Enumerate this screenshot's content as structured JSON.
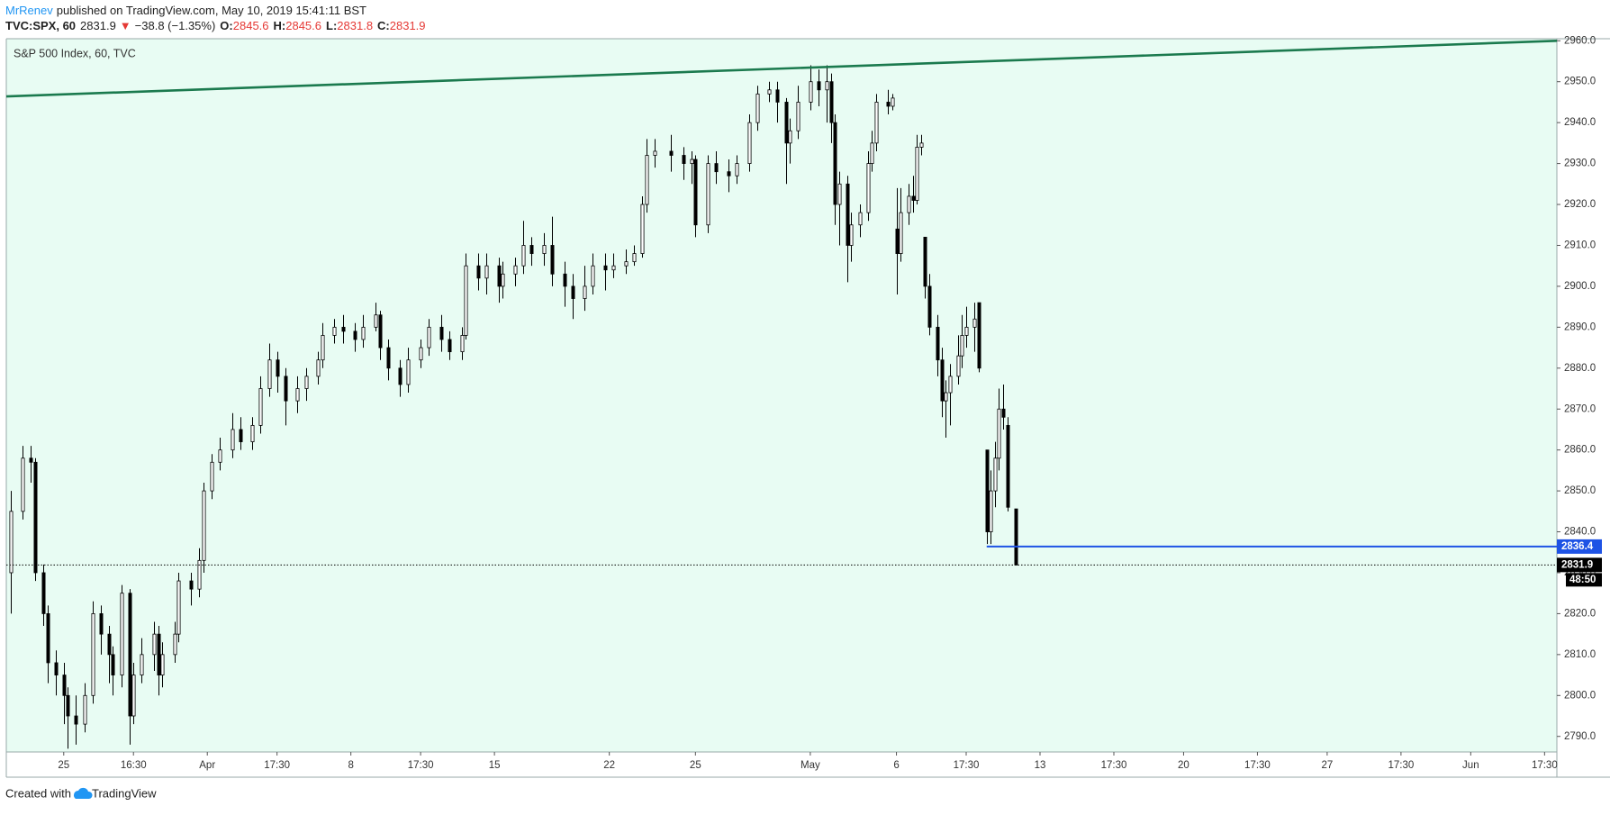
{
  "header": {
    "author": "MrRenev",
    "published": "published on TradingView.com, May 10, 2019 15:41:11 BST",
    "symbol": "TVC:SPX, 60",
    "last": "2831.9",
    "arrow": "▼",
    "change": "−38.8 (−1.35%)",
    "ohlc": [
      {
        "label": "O:",
        "value": "2845.6"
      },
      {
        "label": "H:",
        "value": "2845.6"
      },
      {
        "label": "L:",
        "value": "2831.8"
      },
      {
        "label": "C:",
        "value": "2831.9"
      }
    ]
  },
  "footer": {
    "created": "Created with",
    "brand": "TradingView"
  },
  "chart_data": {
    "type": "candlestick",
    "title": "S&P 500 Index, 60, TVC",
    "background": "#e8fcf3",
    "up_color": "#ffffff",
    "down_color": "#000000",
    "wick_color": "#000000",
    "x": [
      1,
      4,
      6,
      7,
      9,
      10,
      12,
      14,
      15,
      17,
      19,
      21,
      23,
      25,
      26,
      28,
      30,
      31,
      33,
      36,
      37,
      38,
      41,
      42,
      45,
      47,
      48,
      50,
      52,
      55,
      57,
      60,
      62,
      64,
      66,
      68,
      71,
      73,
      76,
      77,
      80,
      82,
      85,
      87,
      90,
      91,
      93,
      96,
      98,
      101,
      103,
      106,
      108,
      111,
      112,
      115,
      117,
      120,
      121,
      124,
      126,
      128,
      131,
      133,
      136,
      138,
      141,
      143,
      146,
      148,
      151,
      153,
      155,
      156,
      158,
      162,
      165,
      167,
      168,
      171,
      173,
      176,
      178,
      181,
      183,
      186,
      188,
      190,
      191,
      193,
      196,
      198,
      200,
      201,
      202,
      203,
      205,
      206,
      208,
      210,
      211,
      212,
      215,
      216,
      217,
      218,
      220,
      221,
      222,
      223,
      224,
      225,
      227,
      228,
      229,
      230,
      232,
      233,
      234,
      236,
      237,
      239,
      240,
      241,
      242,
      243,
      244,
      246
    ],
    "open": [
      2830,
      2845,
      2858,
      2857,
      2830,
      2820,
      2808,
      2805,
      2800,
      2795,
      2793,
      2800,
      2820,
      2815,
      2810,
      2805,
      2825,
      2795,
      2805,
      2810,
      2815,
      2805,
      2810,
      2815,
      2828,
      2826,
      2833,
      2850,
      2857,
      2860,
      2865,
      2862,
      2866,
      2875,
      2882,
      2878,
      2872,
      2875,
      2878,
      2882,
      2888,
      2890,
      2889,
      2887,
      2890,
      2893,
      2885,
      2880,
      2876,
      2882,
      2885,
      2890,
      2887,
      2884,
      2888,
      2905,
      2902,
      2905,
      2900,
      2903,
      2905,
      2910,
      2908,
      2910,
      2903,
      2900,
      2897,
      2900,
      2905,
      2904,
      2905,
      2906,
      2908,
      2920,
      2932,
      2933,
      2932,
      2930,
      2931,
      2915,
      2930,
      2928,
      2927,
      2930,
      2940,
      2947,
      2948,
      2945,
      2935,
      2938,
      2945,
      2950,
      2948,
      2950,
      2940,
      2920,
      2925,
      2910,
      2915,
      2918,
      2930,
      2935,
      2945,
      2944,
      2914,
      2908,
      2918,
      2922,
      2921,
      2934,
      2912,
      2900,
      2890,
      2882,
      2872,
      2874,
      2878,
      2883,
      2888,
      2890,
      2896,
      2860,
      2840,
      2850,
      2858,
      2870,
      2866,
      2845.6
    ],
    "high": [
      2850,
      2861,
      2861,
      2858,
      2832,
      2822,
      2811,
      2808,
      2802,
      2800,
      2803,
      2823,
      2822,
      2817,
      2812,
      2827,
      2826,
      2808,
      2814,
      2818,
      2817,
      2813,
      2818,
      2830,
      2830,
      2836,
      2852,
      2859,
      2863,
      2869,
      2868,
      2868,
      2878,
      2886,
      2884,
      2880,
      2878,
      2880,
      2884,
      2891,
      2892,
      2893,
      2891,
      2893,
      2896,
      2894,
      2887,
      2882,
      2885,
      2887,
      2892,
      2893,
      2889,
      2890,
      2908,
      2908,
      2908,
      2907,
      2906,
      2907,
      2916,
      2912,
      2913,
      2917,
      2906,
      2903,
      2905,
      2908,
      2908,
      2908,
      2909,
      2910,
      2922,
      2936,
      2936,
      2937,
      2934,
      2933,
      2932,
      2932,
      2933,
      2931,
      2932,
      2942,
      2949,
      2950,
      2950,
      2946,
      2941,
      2949,
      2954,
      2953,
      2954,
      2952,
      2942,
      2928,
      2927,
      2918,
      2920,
      2933,
      2938,
      2947,
      2948,
      2947,
      2924,
      2924,
      2925,
      2927,
      2937,
      2937,
      2912,
      2903,
      2893,
      2885,
      2877,
      2881,
      2888,
      2893,
      2895,
      2896,
      2896,
      2860,
      2855,
      2862,
      2875,
      2876,
      2868,
      2845.6
    ],
    "low": [
      2820,
      2843,
      2852,
      2828,
      2817,
      2803,
      2800,
      2793,
      2787,
      2788,
      2791,
      2798,
      2810,
      2803,
      2800,
      2802,
      2788,
      2793,
      2803,
      2806,
      2800,
      2802,
      2808,
      2813,
      2822,
      2824,
      2830,
      2848,
      2855,
      2858,
      2860,
      2860,
      2864,
      2873,
      2874,
      2866,
      2869,
      2872,
      2876,
      2880,
      2886,
      2886,
      2884,
      2885,
      2889,
      2882,
      2877,
      2873,
      2874,
      2880,
      2883,
      2884,
      2882,
      2882,
      2887,
      2899,
      2898,
      2896,
      2897,
      2900,
      2903,
      2905,
      2905,
      2900,
      2895,
      2892,
      2894,
      2898,
      2899,
      2902,
      2903,
      2905,
      2907,
      2918,
      2929,
      2928,
      2926,
      2925,
      2912,
      2913,
      2925,
      2923,
      2925,
      2928,
      2938,
      2945,
      2940,
      2925,
      2930,
      2936,
      2943,
      2944,
      2940,
      2935,
      2915,
      2910,
      2901,
      2906,
      2912,
      2916,
      2928,
      2933,
      2942,
      2943,
      2898,
      2906,
      2915,
      2918,
      2920,
      2932,
      2897,
      2888,
      2878,
      2868,
      2863,
      2866,
      2876,
      2880,
      2885,
      2884,
      2879,
      2837,
      2837,
      2846,
      2855,
      2865,
      2845,
      2831.8
    ],
    "close": [
      2845,
      2858,
      2857,
      2830,
      2820,
      2808,
      2805,
      2800,
      2795,
      2793,
      2800,
      2820,
      2815,
      2810,
      2805,
      2825,
      2795,
      2805,
      2810,
      2815,
      2805,
      2810,
      2815,
      2828,
      2826,
      2833,
      2850,
      2857,
      2860,
      2865,
      2862,
      2866,
      2875,
      2882,
      2878,
      2872,
      2875,
      2878,
      2882,
      2888,
      2890,
      2889,
      2887,
      2890,
      2893,
      2885,
      2880,
      2876,
      2882,
      2885,
      2890,
      2887,
      2884,
      2888,
      2905,
      2902,
      2905,
      2900,
      2903,
      2905,
      2910,
      2908,
      2910,
      2903,
      2900,
      2897,
      2900,
      2905,
      2904,
      2905,
      2906,
      2908,
      2920,
      2932,
      2933,
      2932,
      2930,
      2931,
      2915,
      2930,
      2928,
      2927,
      2930,
      2940,
      2947,
      2948,
      2945,
      2935,
      2938,
      2945,
      2950,
      2948,
      2950,
      2940,
      2920,
      2925,
      2910,
      2915,
      2918,
      2930,
      2935,
      2945,
      2944,
      2946,
      2908,
      2918,
      2922,
      2921,
      2934,
      2935,
      2900,
      2890,
      2882,
      2872,
      2874,
      2878,
      2883,
      2888,
      2890,
      2892,
      2880,
      2840,
      2850,
      2858,
      2870,
      2868,
      2846,
      2831.9
    ],
    "xlim": [
      0,
      378
    ],
    "xticks": [
      {
        "value": 14,
        "label": "25"
      },
      {
        "value": 31,
        "label": "16:30"
      },
      {
        "value": 49,
        "label": "Apr"
      },
      {
        "value": 66,
        "label": "17:30"
      },
      {
        "value": 84,
        "label": "8"
      },
      {
        "value": 101,
        "label": "17:30"
      },
      {
        "value": 119,
        "label": "15"
      },
      {
        "value": 147,
        "label": "22"
      },
      {
        "value": 168,
        "label": "25"
      },
      {
        "value": 196,
        "label": "May"
      },
      {
        "value": 217,
        "label": "6"
      },
      {
        "value": 234,
        "label": "17:30"
      },
      {
        "value": 252,
        "label": "13"
      },
      {
        "value": 270,
        "label": "17:30"
      },
      {
        "value": 287,
        "label": "20"
      },
      {
        "value": 305,
        "label": "17:30"
      },
      {
        "value": 322,
        "label": "27"
      },
      {
        "value": 340,
        "label": "17:30"
      },
      {
        "value": 357,
        "label": "Jun"
      },
      {
        "value": 375,
        "label": "17:30"
      }
    ],
    "ylim": [
      2786.2,
      2960.5
    ],
    "yticks": [
      {
        "value": 2790,
        "label": "2790.0"
      },
      {
        "value": 2800,
        "label": "2800.0"
      },
      {
        "value": 2810,
        "label": "2810.0"
      },
      {
        "value": 2820,
        "label": "2820.0"
      },
      {
        "value": 2830,
        "label": "2830.0"
      },
      {
        "value": 2840,
        "label": "2840.0"
      },
      {
        "value": 2850,
        "label": "2850.0"
      },
      {
        "value": 2860,
        "label": "2860.0"
      },
      {
        "value": 2870,
        "label": "2870.0"
      },
      {
        "value": 2880,
        "label": "2880.0"
      },
      {
        "value": 2890,
        "label": "2890.0"
      },
      {
        "value": 2900,
        "label": "2900.0"
      },
      {
        "value": 2910,
        "label": "2910.0"
      },
      {
        "value": 2920,
        "label": "2920.0"
      },
      {
        "value": 2930,
        "label": "2930.0"
      },
      {
        "value": 2940,
        "label": "2940.0"
      },
      {
        "value": 2950,
        "label": "2950.0"
      },
      {
        "value": 2960,
        "label": "2960.0"
      }
    ],
    "trendline": {
      "start": {
        "x": 0,
        "y": 2946.4
      },
      "end": {
        "x": 378,
        "y": 2960
      },
      "color": "#1b7a4e"
    },
    "hline": {
      "value": 2836.4,
      "x_start": 239,
      "color": "#1e53e5"
    },
    "last_price": {
      "value": 2831.9,
      "countdown": "48:50"
    }
  }
}
